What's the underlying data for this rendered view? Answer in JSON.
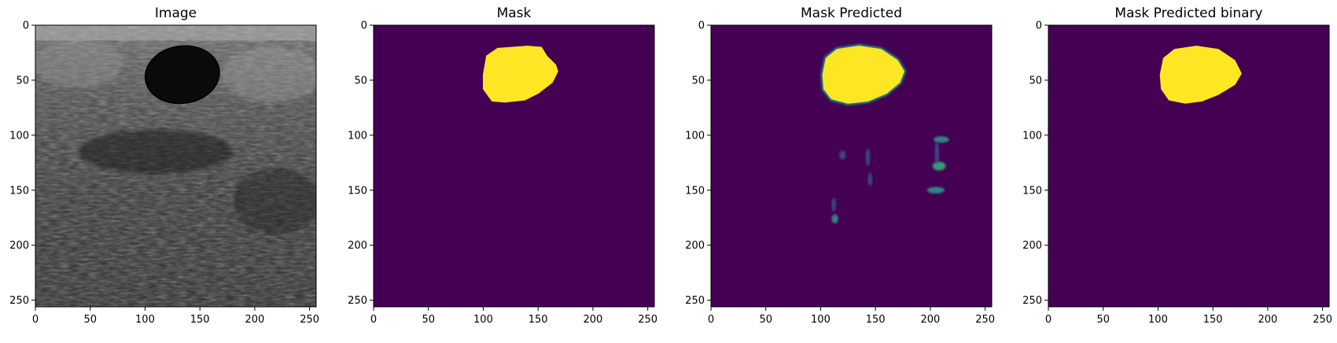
{
  "chart_data": [
    {
      "type": "heatmap",
      "title": "Image",
      "colormap": "gray",
      "xlim": [
        0,
        256
      ],
      "ylim": [
        256,
        0
      ],
      "xticks": [
        0,
        50,
        100,
        150,
        200,
        250
      ],
      "yticks": [
        0,
        50,
        100,
        150,
        200,
        250
      ],
      "lesion_center": [
        134,
        45
      ],
      "lesion_radius": [
        34,
        26
      ],
      "lesion_outline": "#000000"
    },
    {
      "type": "heatmap",
      "title": "Mask",
      "colormap": "viridis",
      "xlim": [
        0,
        256
      ],
      "ylim": [
        256,
        0
      ],
      "xticks": [
        0,
        50,
        100,
        150,
        200,
        250
      ],
      "yticks": [
        0,
        50,
        100,
        150,
        200,
        250
      ],
      "background_color": "#440154",
      "foreground_color": "#fde725",
      "region": [
        [
          100,
          45
        ],
        [
          103,
          28
        ],
        [
          113,
          21
        ],
        [
          140,
          19
        ],
        [
          153,
          20
        ],
        [
          158,
          28
        ],
        [
          166,
          36
        ],
        [
          168,
          42
        ],
        [
          163,
          52
        ],
        [
          150,
          62
        ],
        [
          138,
          68
        ],
        [
          120,
          70
        ],
        [
          108,
          69
        ],
        [
          100,
          58
        ]
      ]
    },
    {
      "type": "heatmap",
      "title": "Mask Predicted",
      "colormap": "viridis",
      "xlim": [
        0,
        256
      ],
      "ylim": [
        256,
        0
      ],
      "xticks": [
        0,
        50,
        100,
        150,
        200,
        250
      ],
      "yticks": [
        0,
        50,
        100,
        150,
        200,
        250
      ],
      "background_color": "#440154",
      "foreground_color": "#fde725",
      "region": [
        [
          102,
          45
        ],
        [
          105,
          30
        ],
        [
          115,
          22
        ],
        [
          135,
          19
        ],
        [
          155,
          22
        ],
        [
          170,
          32
        ],
        [
          176,
          42
        ],
        [
          172,
          52
        ],
        [
          160,
          62
        ],
        [
          143,
          69
        ],
        [
          125,
          71
        ],
        [
          110,
          67
        ],
        [
          103,
          58
        ]
      ],
      "blobs": [
        {
          "x": 210,
          "y": 104,
          "rx": 7,
          "ry": 3,
          "color": "#2a9d8e"
        },
        {
          "x": 208,
          "y": 128,
          "rx": 6,
          "ry": 4,
          "color": "#35b779"
        },
        {
          "x": 205,
          "y": 150,
          "rx": 8,
          "ry": 3,
          "color": "#2a9d8e"
        },
        {
          "x": 113,
          "y": 176,
          "rx": 3,
          "ry": 4,
          "color": "#2a9d8e"
        },
        {
          "x": 112,
          "y": 163,
          "rx": 2,
          "ry": 6,
          "color": "#3b528b"
        },
        {
          "x": 143,
          "y": 120,
          "rx": 2,
          "ry": 8,
          "color": "#3b528b"
        },
        {
          "x": 145,
          "y": 140,
          "rx": 2,
          "ry": 6,
          "color": "#3b528b"
        },
        {
          "x": 120,
          "y": 118,
          "rx": 3,
          "ry": 4,
          "color": "#3b528b"
        },
        {
          "x": 206,
          "y": 116,
          "rx": 2,
          "ry": 10,
          "color": "#3b528b"
        }
      ]
    },
    {
      "type": "heatmap",
      "title": "Mask Predicted binary",
      "colormap": "viridis",
      "xlim": [
        0,
        256
      ],
      "ylim": [
        256,
        0
      ],
      "xticks": [
        0,
        50,
        100,
        150,
        200,
        250
      ],
      "yticks": [
        0,
        50,
        100,
        150,
        200,
        250
      ],
      "background_color": "#440154",
      "foreground_color": "#fde725",
      "region": [
        [
          102,
          45
        ],
        [
          105,
          30
        ],
        [
          115,
          22
        ],
        [
          135,
          19
        ],
        [
          155,
          22
        ],
        [
          170,
          32
        ],
        [
          176,
          44
        ],
        [
          170,
          54
        ],
        [
          155,
          63
        ],
        [
          140,
          69
        ],
        [
          125,
          71
        ],
        [
          110,
          68
        ],
        [
          103,
          58
        ]
      ]
    }
  ]
}
